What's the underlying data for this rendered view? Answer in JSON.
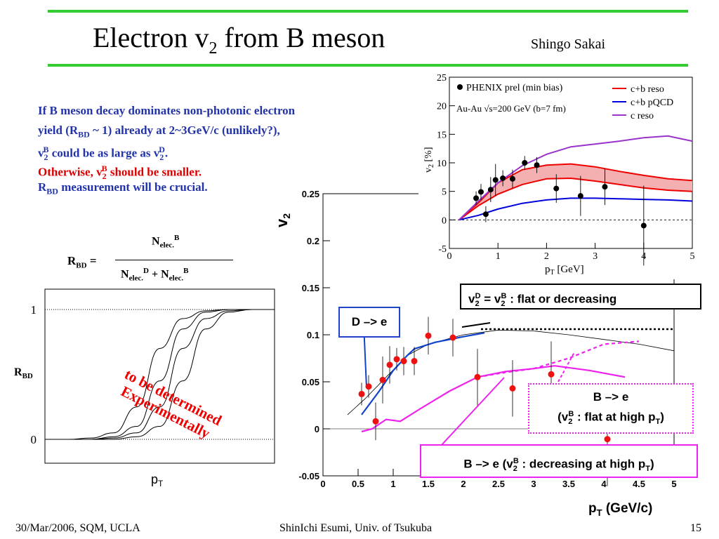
{
  "header": {
    "title_main": "Electron v",
    "title_sub": "2",
    "title_rest": " from B meson",
    "author": "Shingo Sakai"
  },
  "text": {
    "l1": "If B meson decay dominates non-photonic electron",
    "l2a": "yield (R",
    "l2sub": "BD",
    "l2b": " ~ 1) already at 2~3GeV/c (unlikely?),",
    "l3a": "v",
    "l3sub": "2",
    "l3sup": "B",
    "l3b": " could be as large as v",
    "l3sub2": "2",
    "l3sup2": "D",
    "l3c": ".",
    "l4a": "Otherwise, v",
    "l4sub": "2",
    "l4sup": "B",
    "l4b": " should be smaller.",
    "l5a": "R",
    "l5sub": "BD",
    "l5b": " measurement will be crucial."
  },
  "formula": {
    "lhs": "R",
    "lhs_sub": "BD",
    "eq": " =",
    "num": "N",
    "num_sub": "elec.",
    "num_sup": "B",
    "den_a": "N",
    "den_a_sub": "elec.",
    "den_a_sup": "D",
    "den_plus": " + N",
    "den_b_sub": "elec.",
    "den_b_sup": "B"
  },
  "rbd_plot": {
    "tick_1": "1",
    "tick_0": "0",
    "ylabel": "R",
    "ylabel_sub": "BD",
    "xlabel": "p",
    "xlabel_sub": "T",
    "annotation_line1": "to be determined",
    "annotation_line2": "Experimentally"
  },
  "main_plot": {
    "yticks": [
      "0.25",
      "0.2",
      "0.15",
      "0.1",
      "0.05",
      "0",
      "-0.05"
    ],
    "xticks": [
      "0",
      "0.5",
      "1",
      "1.5",
      "2",
      "2.5",
      "3",
      "3.5",
      "4",
      "4.5",
      "5"
    ],
    "ylabel": "v",
    "ylabel_sub": "2",
    "xlabel": "p",
    "xlabel_sub": "T",
    "xlabel_rest": " (GeV/c)"
  },
  "inset": {
    "yticks": [
      "25",
      "20",
      "15",
      "10",
      "5",
      "0",
      "-5"
    ],
    "xticks": [
      "0",
      "1",
      "2",
      "3",
      "4",
      "5"
    ],
    "ylabel": "v",
    "ylabel_sub": "2",
    "ylabel_rest": " [%]",
    "xlabel": "p",
    "xlabel_sub": "T",
    "xlabel_rest": " [GeV]",
    "legend_data": "PHENIX prel (min bias)",
    "legend_sys": "Au-Au √s=200 GeV (b=7 fm)",
    "legend_items": [
      {
        "label": "c+b reso",
        "color": "#ee0000"
      },
      {
        "label": "c+b pQCD",
        "color": "#0000dd"
      },
      {
        "label": "c reso",
        "color": "#9933cc"
      }
    ]
  },
  "boxes": {
    "flat_a": "v",
    "flat_sub": "2",
    "flat_sup": "D",
    "flat_b": " = v",
    "flat_sub2": "2",
    "flat_sup2": "B",
    "flat_c": " : flat or decreasing",
    "de": "D –> e",
    "be_flat1": "B –> e",
    "be_flat2a": "(v",
    "be_flat2sub": "2",
    "be_flat2sup": "B",
    "be_flat2b": " : flat at high p",
    "be_flat2sub2": "T",
    "be_flat2c": ")",
    "be_dec_a": "B –> e (v",
    "be_dec_sub": "2",
    "be_dec_sup": "B",
    "be_dec_b": " : decreasing at high p",
    "be_dec_sub2": "T",
    "be_dec_c": ")"
  },
  "footer": {
    "left": "30/Mar/2006, SQM, UCLA",
    "center": "ShinIchi Esumi, Univ. of Tsukuba",
    "right": "15"
  },
  "chart_data": [
    {
      "type": "scatter",
      "title": "",
      "xlabel": "pT (GeV/c)",
      "ylabel": "v2",
      "xlim": [
        0,
        5
      ],
      "ylim": [
        -0.05,
        0.25
      ],
      "series": [
        {
          "name": "",
          "color": "#ee1111",
          "x": [
            0.55,
            0.65,
            0.75,
            0.85,
            0.95,
            1.05,
            1.15,
            1.3,
            1.5,
            1.85,
            2.2,
            2.7,
            3.25,
            4.05
          ],
          "y": [
            0.037,
            0.045,
            0.008,
            0.052,
            0.068,
            0.074,
            0.072,
            0.072,
            0.099,
            0.097,
            0.055,
            0.043,
            0.058,
            -0.011
          ]
        },
        {
          "name": "D -> e",
          "color": "#1144cc",
          "x": [
            0.55,
            0.8,
            1.0,
            1.2,
            1.3,
            1.6,
            2.0,
            2.3
          ],
          "y": [
            0.015,
            0.04,
            0.062,
            0.078,
            0.085,
            0.092,
            0.098,
            0.102
          ]
        },
        {
          "name": "B -> e (v2B : decreasing at high pT)",
          "color": "#ee22ee",
          "x": [
            0.55,
            0.7,
            0.9,
            1.1,
            1.4,
            1.8,
            2.2,
            2.6,
            3.0,
            3.3,
            3.8,
            4.3
          ],
          "y": [
            -0.003,
            0.0,
            0.01,
            0.008,
            0.022,
            0.04,
            0.055,
            0.061,
            0.064,
            0.067,
            0.062,
            0.055
          ]
        },
        {
          "name": "B -> e (v2B : flat at high pT)",
          "color": "#ee22ee",
          "x": [
            2.2,
            2.6,
            3.0,
            3.5,
            4.0,
            4.5
          ],
          "y": [
            0.055,
            0.06,
            0.064,
            0.075,
            0.09,
            0.093
          ]
        },
        {
          "name": "",
          "color": "#000000",
          "x": [
            0.35,
            0.6,
            0.9,
            1.2,
            1.5,
            2.0,
            2.5,
            3.0,
            3.5,
            4.0,
            4.5,
            5.0
          ],
          "y": [
            0.015,
            0.032,
            0.055,
            0.078,
            0.09,
            0.1,
            0.105,
            0.104,
            0.1,
            0.095,
            0.09,
            0.083
          ]
        },
        {
          "name": "v2D = v2B : flat or decreasing",
          "color": "#000000",
          "x": [
            2.25,
            5.0
          ],
          "y": [
            0.106,
            0.106
          ]
        }
      ]
    },
    {
      "type": "line",
      "title": "",
      "xlabel": "pT [GeV]",
      "ylabel": "v2 [%]",
      "xlim": [
        0,
        5
      ],
      "ylim": [
        -5,
        25
      ],
      "series": [
        {
          "name": "PHENIX prel (min bias)",
          "color": "#000000",
          "x": [
            0.55,
            0.65,
            0.75,
            0.85,
            0.95,
            1.1,
            1.3,
            1.55,
            1.8,
            2.2,
            2.7,
            3.2,
            4.0
          ],
          "y": [
            3.8,
            4.9,
            1.0,
            5.3,
            7.0,
            7.3,
            7.2,
            10.0,
            9.6,
            5.5,
            4.2,
            5.8,
            -1.0
          ]
        },
        {
          "name": "c+b reso (upper)",
          "color": "#ee0000",
          "x": [
            0.2,
            0.6,
            1.0,
            1.5,
            2.0,
            2.5,
            3.0,
            3.5,
            4.0,
            4.5,
            5.0
          ],
          "y": [
            0,
            3.0,
            6.5,
            8.8,
            9.6,
            9.8,
            9.3,
            8.5,
            7.8,
            7.2,
            6.9
          ]
        },
        {
          "name": "c+b reso (lower)",
          "color": "#ee0000",
          "x": [
            0.2,
            0.6,
            1.0,
            1.5,
            2.0,
            2.5,
            3.0,
            3.5,
            4.0,
            4.5,
            5.0
          ],
          "y": [
            0,
            2.5,
            4.5,
            6.2,
            7.2,
            7.3,
            6.8,
            6.2,
            5.6,
            5.2,
            5.0
          ]
        },
        {
          "name": "c+b pQCD",
          "color": "#0000dd",
          "x": [
            0.2,
            0.6,
            1.0,
            1.5,
            2.0,
            2.5,
            3.0,
            3.5,
            4.0,
            4.5,
            5.0
          ],
          "y": [
            0,
            0.8,
            1.9,
            2.9,
            3.5,
            3.8,
            3.8,
            3.7,
            3.6,
            3.5,
            3.3
          ]
        },
        {
          "name": "c reso",
          "color": "#9933cc",
          "x": [
            0.2,
            0.6,
            1.0,
            1.5,
            2.0,
            2.5,
            3.0,
            3.5,
            4.0,
            4.5,
            5.0
          ],
          "y": [
            0,
            3.3,
            6.5,
            9.5,
            11.5,
            12.8,
            13.3,
            13.8,
            14.4,
            14.7,
            13.8
          ]
        }
      ]
    },
    {
      "type": "line",
      "title": "",
      "xlabel": "pT",
      "ylabel": "RBD",
      "ylim": [
        0,
        1
      ],
      "series": [
        {
          "name": "",
          "color": "#000000",
          "x": [
            0,
            1,
            2,
            3,
            4,
            5,
            6,
            7,
            8,
            9,
            10
          ],
          "y": [
            0,
            0,
            0.01,
            0.05,
            0.25,
            0.7,
            0.93,
            0.99,
            1,
            1,
            1
          ]
        },
        {
          "name": "",
          "color": "#000000",
          "x": [
            0,
            1,
            2,
            3,
            4,
            5,
            6,
            7,
            8,
            9,
            10
          ],
          "y": [
            0,
            0,
            0,
            0.02,
            0.1,
            0.45,
            0.85,
            0.98,
            1,
            1,
            1
          ]
        },
        {
          "name": "",
          "color": "#000000",
          "x": [
            0,
            1,
            2,
            3,
            4,
            5,
            6,
            7,
            8,
            9,
            10
          ],
          "y": [
            0,
            0,
            0,
            0.01,
            0.05,
            0.25,
            0.7,
            0.93,
            0.99,
            1,
            1
          ]
        },
        {
          "name": "",
          "color": "#000000",
          "x": [
            0,
            1,
            2,
            3,
            4,
            5,
            6,
            7,
            8,
            9,
            10
          ],
          "y": [
            0,
            0,
            0,
            0,
            0.02,
            0.1,
            0.45,
            0.85,
            0.98,
            1,
            1
          ]
        }
      ]
    }
  ]
}
